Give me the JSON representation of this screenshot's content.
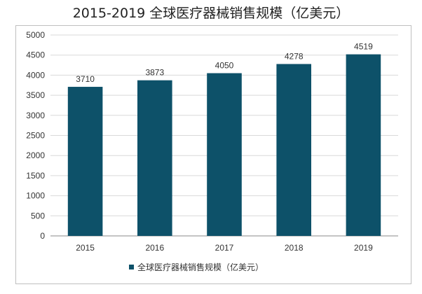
{
  "chart_data": {
    "type": "bar",
    "title": "2015-2019 全球医疗器械销售规模（亿美元）",
    "categories": [
      "2015",
      "2016",
      "2017",
      "2018",
      "2019"
    ],
    "series": [
      {
        "name": "全球医疗器械销售规模（亿美元）",
        "values": [
          3710,
          3873,
          4050,
          4278,
          4519
        ]
      }
    ],
    "data_labels": [
      "3710",
      "3873",
      "4050",
      "4278",
      "4519"
    ],
    "ylim": [
      0,
      5000
    ],
    "yticks": [
      "0",
      "500",
      "1000",
      "1500",
      "2000",
      "2500",
      "3000",
      "3500",
      "4000",
      "4500",
      "5000"
    ],
    "grid": true,
    "legend_position": "bottom",
    "colors": {
      "bar": "#0d5169",
      "grid": "#d9d9d9",
      "axis": "#888888"
    }
  }
}
